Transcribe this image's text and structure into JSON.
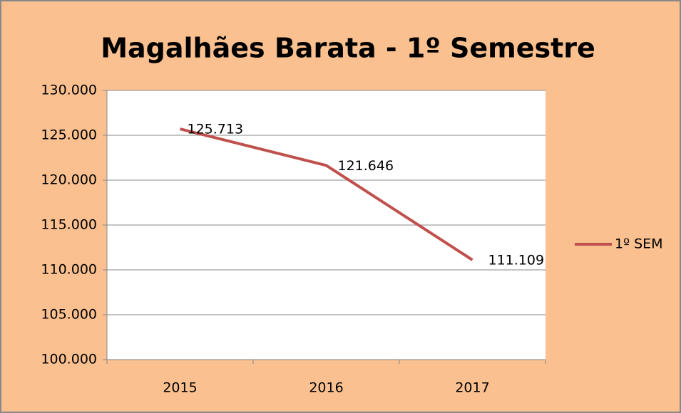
{
  "chart_data": {
    "type": "line",
    "title": "Magalhães Barata - 1º Semestre",
    "categories": [
      "2015",
      "2016",
      "2017"
    ],
    "series": [
      {
        "name": "1º SEM",
        "color": "#c0504d",
        "values": [
          125713,
          121646,
          111109
        ],
        "value_labels": [
          "125.713",
          "121.646",
          "111.109"
        ]
      }
    ],
    "ylim": [
      100000,
      130000
    ],
    "yticks": [
      {
        "value": 100000,
        "label": "100.000"
      },
      {
        "value": 105000,
        "label": "105.000"
      },
      {
        "value": 110000,
        "label": "110.000"
      },
      {
        "value": 115000,
        "label": "115.000"
      },
      {
        "value": 120000,
        "label": "120.000"
      },
      {
        "value": 125000,
        "label": "125.000"
      },
      {
        "value": 130000,
        "label": "130.000"
      }
    ],
    "grid": true,
    "legend": "right"
  }
}
